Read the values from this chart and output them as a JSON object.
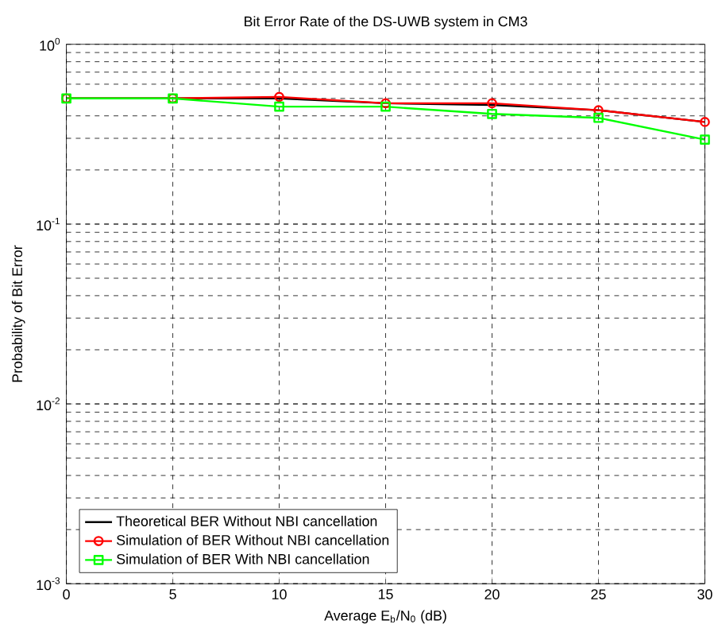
{
  "chart_data": {
    "type": "line",
    "title": "Bit Error Rate of the DS-UWB system in CM3",
    "xlabel": "Average E$_{b}$/N$_{0}$ (dB)",
    "ylabel": "Probability of Bit Error",
    "x": [
      0,
      5,
      10,
      15,
      20,
      25,
      30
    ],
    "series": [
      {
        "name": "Theoretical BER Without NBI cancellation",
        "color": "#000000",
        "marker": "none",
        "values": [
          0.5,
          0.5,
          0.5,
          0.47,
          0.46,
          0.43,
          0.37
        ]
      },
      {
        "name": "Simulation of BER Without NBI cancellation",
        "color": "#ff0000",
        "marker": "circle",
        "values": [
          0.5,
          0.5,
          0.51,
          0.47,
          0.47,
          0.43,
          0.37
        ]
      },
      {
        "name": "Simulation of BER With NBI cancellation",
        "color": "#00ff00",
        "marker": "square",
        "values": [
          0.5,
          0.5,
          0.45,
          0.45,
          0.41,
          0.39,
          0.295
        ]
      }
    ],
    "xlim": [
      0,
      30
    ],
    "xticks": [
      0,
      5,
      10,
      15,
      20,
      25,
      30
    ],
    "ylim": [
      0.001,
      1
    ],
    "yticks": [
      {
        "value": 0.001,
        "label": "10$^{-3}$"
      },
      {
        "value": 0.01,
        "label": "10$^{-2}$"
      },
      {
        "value": 0.1,
        "label": "10$^{-1}$"
      },
      {
        "value": 1,
        "label": "10$^{0}$"
      }
    ],
    "log": "y",
    "grid": true,
    "legend": "bottom left",
    "line_style": "solid"
  }
}
